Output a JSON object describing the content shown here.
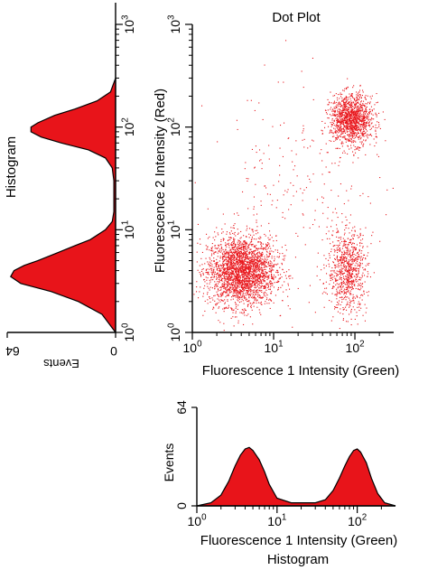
{
  "chart_data": [
    {
      "type": "scatter",
      "title": "Dot Plot",
      "xlabel": "Fluorescence 1 Intensity (Green)",
      "ylabel": "Fluorescence 2 Intensity (Red)",
      "x_scale": "log",
      "y_scale": "log",
      "xlim": [
        1,
        300
      ],
      "ylim": [
        1,
        1000
      ],
      "x_ticks": [
        {
          "value": 1,
          "label": "10",
          "exp": "0"
        },
        {
          "value": 10,
          "label": "10",
          "exp": "1"
        },
        {
          "value": 100,
          "label": "10",
          "exp": "2"
        }
      ],
      "y_ticks": [
        {
          "value": 1,
          "label": "10",
          "exp": "0"
        },
        {
          "value": 10,
          "label": "10",
          "exp": "1"
        },
        {
          "value": 100,
          "label": "10",
          "exp": "2"
        },
        {
          "value": 1000,
          "label": "10",
          "exp": "3"
        }
      ],
      "color": "#e8141a",
      "populations": [
        {
          "x_center": 4,
          "y_center": 4,
          "x_spread_log": 0.21,
          "y_spread_log": 0.17,
          "points": 2600
        },
        {
          "x_center": 90,
          "y_center": 120,
          "x_spread_log": 0.13,
          "y_spread_log": 0.12,
          "points": 1300
        },
        {
          "x_center": 80,
          "y_center": 4,
          "x_spread_log": 0.12,
          "y_spread_log": 0.2,
          "points": 800
        },
        {
          "x_center": 20,
          "y_center": 20,
          "x_spread_log": 0.55,
          "y_spread_log": 0.55,
          "points": 250
        }
      ]
    },
    {
      "type": "area",
      "title": "Histogram",
      "xlabel": "Fluorescence 1 Intensity (Green)",
      "ylabel": "Events",
      "x_scale": "log",
      "xlim": [
        1,
        300
      ],
      "ylim": [
        0,
        64
      ],
      "x_ticks": [
        {
          "value": 1,
          "label": "10",
          "exp": "0"
        },
        {
          "value": 10,
          "label": "10",
          "exp": "1"
        },
        {
          "value": 100,
          "label": "10",
          "exp": "2"
        }
      ],
      "y_ticks": [
        {
          "value": 0,
          "label": "0"
        },
        {
          "value": 64,
          "label": "64"
        }
      ],
      "color": "#e8141a",
      "x": [
        1,
        1.5,
        2,
        2.5,
        3,
        3.5,
        4,
        4.5,
        5,
        6,
        7,
        8,
        10,
        15,
        20,
        30,
        40,
        50,
        60,
        70,
        80,
        90,
        100,
        110,
        130,
        150,
        180,
        220,
        300
      ],
      "values": [
        0,
        2,
        7,
        16,
        26,
        33,
        37,
        38,
        36,
        30,
        22,
        14,
        5,
        2,
        2,
        2,
        4,
        10,
        18,
        26,
        32,
        36,
        37,
        35,
        28,
        18,
        8,
        2,
        0
      ]
    },
    {
      "type": "area",
      "title": "Histogram",
      "xlabel": "Events",
      "ylabel": "",
      "orientation": "horizontal",
      "y_scale": "log",
      "ylim": [
        1,
        1000
      ],
      "xlim": [
        0,
        64
      ],
      "x_ticks": [
        {
          "value": 0,
          "label": "0"
        },
        {
          "value": 64,
          "label": "64"
        }
      ],
      "y_ticks": [
        {
          "value": 1,
          "label": "10",
          "exp": "0"
        },
        {
          "value": 10,
          "label": "10",
          "exp": "1"
        },
        {
          "value": 100,
          "label": "10",
          "exp": "2"
        },
        {
          "value": 1000,
          "label": "10",
          "exp": "3"
        }
      ],
      "color": "#e8141a",
      "y": [
        1,
        1.5,
        2,
        2.5,
        3,
        3.5,
        4,
        4.5,
        5,
        6,
        7,
        8,
        10,
        12,
        15,
        20,
        30,
        40,
        50,
        60,
        70,
        80,
        90,
        100,
        110,
        130,
        150,
        180,
        220,
        300,
        1000
      ],
      "values": [
        0,
        8,
        22,
        38,
        56,
        62,
        60,
        54,
        46,
        34,
        24,
        15,
        6,
        2,
        1,
        1,
        1,
        2,
        6,
        16,
        32,
        44,
        50,
        50,
        46,
        36,
        24,
        11,
        3,
        0,
        0
      ]
    }
  ]
}
